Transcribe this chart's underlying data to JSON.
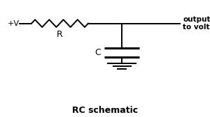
{
  "bg_color": "#ffffff",
  "line_color": "#000000",
  "title": "RC schematic",
  "title_fontsize": 9,
  "label_plus_v": "+V",
  "label_R": "R",
  "label_C": "C",
  "label_output": "output\nto voltmeter",
  "figsize": [
    3.0,
    1.68
  ],
  "dpi": 100,
  "xlim": [
    0,
    10
  ],
  "ylim": [
    0,
    10
  ]
}
